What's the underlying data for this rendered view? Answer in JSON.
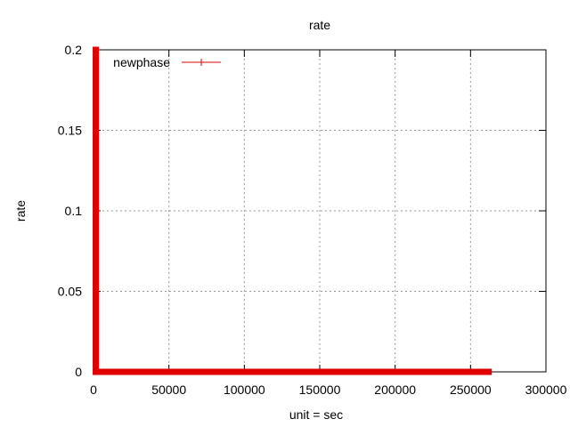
{
  "chart_data": {
    "type": "line",
    "title": "rate",
    "xlabel": "unit = sec",
    "ylabel": "rate",
    "xlim": [
      0,
      300000
    ],
    "ylim": [
      0,
      0.2
    ],
    "xticks": [
      0,
      50000,
      100000,
      150000,
      200000,
      250000,
      300000
    ],
    "yticks": [
      0,
      0.05,
      0.1,
      0.15,
      0.2
    ],
    "xtick_labels": [
      "0",
      "50000",
      "100000",
      "150000",
      "200000",
      "250000",
      "300000"
    ],
    "ytick_labels": [
      "0",
      "0.05",
      "0.1",
      "0.15",
      "0.2"
    ],
    "grid": true,
    "legend_position": "top-left",
    "series": [
      {
        "name": "newphase",
        "color": "#e00000",
        "points": [
          [
            1500,
            0.2
          ],
          [
            1500,
            0
          ],
          [
            262000,
            0
          ]
        ]
      }
    ]
  }
}
